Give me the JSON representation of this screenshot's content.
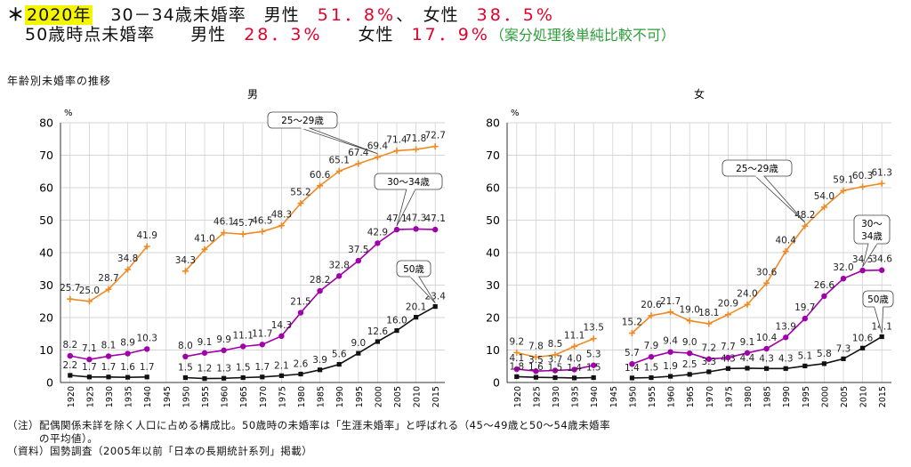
{
  "header": {
    "line1": {
      "star": "＊",
      "year": "2020年",
      "label": "　30－34歳未婚率　男性",
      "male_value": "51．8%",
      "sep": "、　女性",
      "female_value": "38．5%"
    },
    "line2": {
      "label": "50歳時点未婚率　　男性",
      "male_value": "28．3%",
      "sep": "　　女性",
      "female_value": "17．9%",
      "note": "（案分処理後単純比較不可）"
    }
  },
  "figure_title": "年齢別未婚率の推移",
  "notes": [
    "（注）配偶関係未詳を除く人口に占める構成比。50歳時の未婚率は「生涯未婚率」と呼ばれる（45～49歳と50～54歳未婚率",
    "　　　の平均値）。",
    "（資料）国勢調査（2005年以前「日本の長期統計系列」掲載）"
  ],
  "colors": {
    "s25": "#f08a24",
    "s30": "#a000a8",
    "s50": "#111111",
    "axis": "#333333"
  },
  "chart_data": [
    {
      "type": "line",
      "panel": "male",
      "title": "男",
      "unit": "%",
      "ylim": [
        0,
        80
      ],
      "yticks": [
        0,
        10,
        20,
        30,
        40,
        50,
        60,
        70,
        80
      ],
      "grid": true,
      "x": [
        1920,
        1925,
        1930,
        1935,
        1940,
        1945,
        1950,
        1955,
        1960,
        1965,
        1970,
        1975,
        1980,
        1985,
        1990,
        1995,
        2000,
        2005,
        2010,
        2015
      ],
      "series": [
        {
          "name": "25～29歳",
          "callout": "25～29歳",
          "marker": "plus",
          "values": [
            25.7,
            25.0,
            28.7,
            34.8,
            41.9,
            null,
            34.3,
            41.0,
            46.1,
            45.7,
            46.5,
            48.3,
            55.2,
            60.6,
            65.1,
            67.4,
            69.4,
            71.4,
            71.8,
            72.7
          ],
          "labels": [
            "25.7",
            "25.0",
            "28.7",
            "34.8",
            "41.9",
            null,
            "34.3",
            "41.0",
            "46.1",
            "45.7",
            "46.5",
            "48.3",
            "55.2",
            "60.6",
            "65.1",
            "67.4",
            "69.4",
            "71.4",
            "71.8",
            "72.7"
          ]
        },
        {
          "name": "30～34歳",
          "callout": "30～34歳",
          "marker": "circle",
          "values": [
            8.2,
            7.1,
            8.1,
            8.9,
            10.3,
            null,
            8.0,
            9.1,
            9.9,
            11.1,
            11.7,
            14.3,
            21.5,
            28.2,
            32.8,
            37.5,
            42.9,
            47.1,
            47.3,
            47.1
          ],
          "labels": [
            "8.2",
            "7.1",
            "8.1",
            "8.9",
            "10.3",
            null,
            "8.0",
            "9.1",
            "9.9",
            "11.1",
            "11.7",
            "14.3",
            "21.5",
            "28.2",
            "32.8",
            "37.5",
            "42.9",
            "47.1",
            "47.3",
            "47.1"
          ]
        },
        {
          "name": "50歳",
          "callout": "50歳",
          "marker": "square",
          "values": [
            2.2,
            1.7,
            1.7,
            1.6,
            1.7,
            null,
            1.5,
            1.2,
            1.3,
            1.5,
            1.7,
            2.1,
            2.6,
            3.9,
            5.6,
            9.0,
            12.6,
            16.0,
            20.1,
            23.4
          ],
          "labels": [
            "2.2",
            "1.7",
            "1.7",
            "1.6",
            "1.7",
            null,
            "1.5",
            "1.2",
            "1.3",
            "1.5",
            "1.7",
            "2.1",
            "2.6",
            "3.9",
            "5.6",
            "9.0",
            "12.6",
            "16.0",
            "20.1",
            "23.4"
          ]
        }
      ]
    },
    {
      "type": "line",
      "panel": "female",
      "title": "女",
      "unit": "%",
      "ylim": [
        0,
        80
      ],
      "yticks": [
        0,
        10,
        20,
        30,
        40,
        50,
        60,
        70,
        80
      ],
      "grid": true,
      "x": [
        1920,
        1925,
        1930,
        1935,
        1940,
        1945,
        1950,
        1955,
        1960,
        1965,
        1970,
        1975,
        1980,
        1985,
        1990,
        1995,
        2000,
        2005,
        2010,
        2015
      ],
      "series": [
        {
          "name": "25～29歳",
          "callout": "25～29歳",
          "marker": "plus",
          "values": [
            9.2,
            7.8,
            8.5,
            11.1,
            13.5,
            null,
            15.2,
            20.6,
            21.7,
            19.0,
            18.1,
            20.9,
            24.0,
            30.6,
            40.4,
            48.2,
            54.0,
            59.1,
            60.3,
            61.3
          ],
          "labels": [
            "9.2",
            "7.8",
            "8.5",
            "11.1",
            "13.5",
            null,
            "15.2",
            "20.6",
            "21.7",
            "19.0",
            "18.1",
            "20.9",
            "24.0",
            "30.6",
            "40.4",
            "48.2",
            "54.0",
            "59.1",
            "60.3",
            "61.3"
          ]
        },
        {
          "name": "30～34歳",
          "callout": "30～34歳",
          "marker": "circle",
          "values": [
            4.1,
            3.5,
            3.7,
            4.0,
            5.3,
            null,
            5.7,
            7.9,
            9.4,
            9.0,
            7.2,
            7.7,
            9.1,
            10.4,
            13.9,
            19.7,
            26.6,
            32.0,
            34.5,
            34.6
          ],
          "labels": [
            "4.1",
            "3.5",
            "3.7",
            "4.0",
            "5.3",
            null,
            "5.7",
            "7.9",
            "9.4",
            "9.0",
            "7.2",
            "7.7",
            "9.1",
            "10.4",
            "13.9",
            "19.7",
            "26.6",
            "32.0",
            "34.5",
            "34.6"
          ]
        },
        {
          "name": "50歳",
          "callout": "50歳",
          "marker": "square",
          "values": [
            1.8,
            1.6,
            1.5,
            1.4,
            1.5,
            null,
            1.4,
            1.5,
            1.9,
            2.5,
            3.3,
            4.3,
            4.4,
            4.3,
            4.3,
            5.1,
            5.8,
            7.3,
            10.6,
            14.1
          ],
          "labels": [
            "1.8",
            "1.6",
            "1.5",
            "1.4",
            "1.5",
            null,
            "1.4",
            "1.5",
            "1.9",
            "2.5",
            "3.3",
            "4.3",
            "4.4",
            "4.3",
            "4.3",
            "5.1",
            "5.8",
            "7.3",
            "10.6",
            "14.1"
          ]
        }
      ]
    }
  ]
}
